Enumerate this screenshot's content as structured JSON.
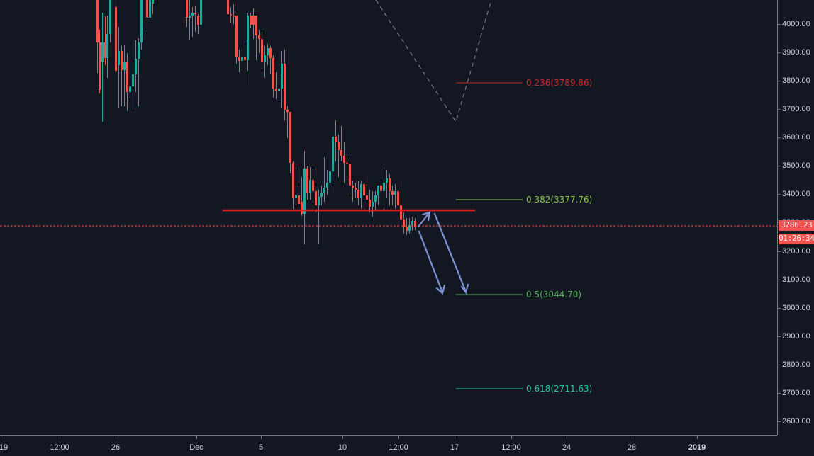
{
  "chart_data": {
    "type": "candlestick",
    "title": "",
    "xlabel": "",
    "ylabel": "",
    "ylim": [
      2560,
      4080
    ],
    "grid": false,
    "y_ticks": [
      "4000.00",
      "3900.00",
      "3800.00",
      "3700.00",
      "3600.00",
      "3500.00",
      "3400.00",
      "3300.00",
      "3200.00",
      "3100.00",
      "3000.00",
      "2900.00",
      "2800.00",
      "2700.00",
      "2600.00"
    ],
    "x_ticks": [
      {
        "label": "19",
        "x": 5
      },
      {
        "label": "12:00",
        "x": 84
      },
      {
        "label": "26",
        "x": 163
      },
      {
        "label": "Dec",
        "x": 277
      },
      {
        "label": "5",
        "x": 368
      },
      {
        "label": "10",
        "x": 483
      },
      {
        "label": "12:00",
        "x": 562
      },
      {
        "label": "17",
        "x": 641
      },
      {
        "label": "12:00",
        "x": 721
      },
      {
        "label": "24",
        "x": 799
      },
      {
        "label": "28",
        "x": 891
      },
      {
        "label": "2019",
        "x": 983,
        "bold": true
      }
    ],
    "last_price": "3286.23",
    "countdown": "01:26:34",
    "fib_levels": [
      {
        "ratio": "0.236",
        "price": "3789.86",
        "label": "0.236(3789.86)",
        "color": "#c62828"
      },
      {
        "ratio": "0.382",
        "price": "3377.76",
        "label": "0.382(3377.76)",
        "color": "#8bc34a"
      },
      {
        "ratio": "0.5",
        "price": "3044.70",
        "label": "0.5(3044.70)",
        "color": "#4caf50"
      },
      {
        "ratio": "0.618",
        "price": "2711.63",
        "label": "0.618(2711.63)",
        "color": "#26c6a0"
      }
    ],
    "support_line": {
      "price": 3345,
      "color": "#ff1a1a"
    },
    "colors": {
      "up": "#26a69a",
      "down": "#ef5350",
      "background": "#131722",
      "axis_text": "#d1d4dc",
      "arrows": "#7b93d6",
      "dashed_path": "#787b86"
    }
  }
}
